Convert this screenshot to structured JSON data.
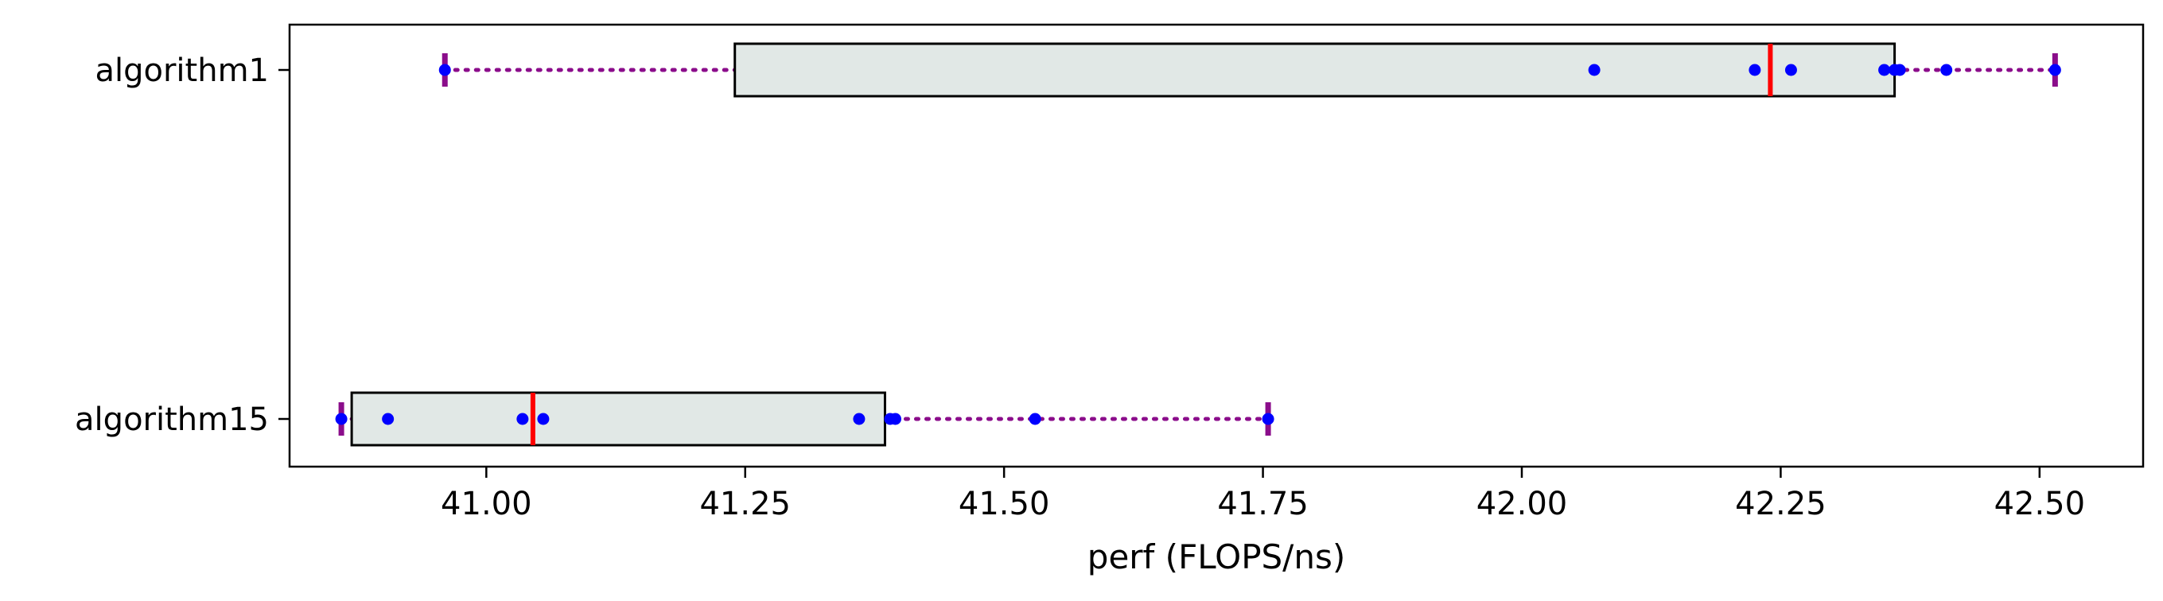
{
  "chart_data": {
    "type": "box",
    "orientation": "horizontal",
    "xlabel": "perf (FLOPS/ns)",
    "ylabel": "",
    "xlim": [
      40.81,
      42.6
    ],
    "x_ticks": [
      41.0,
      41.25,
      41.5,
      41.75,
      42.0,
      42.25,
      42.5
    ],
    "x_tick_labels": [
      "41.00",
      "41.25",
      "41.50",
      "41.75",
      "42.00",
      "42.25",
      "42.50"
    ],
    "grid": false,
    "series": [
      {
        "name": "algorithm1",
        "whisker_low": 40.96,
        "q1": 41.24,
        "median": 42.24,
        "q3": 42.36,
        "whisker_high": 42.515,
        "points": [
          40.96,
          42.07,
          42.225,
          42.26,
          42.35,
          42.36,
          42.365,
          42.41,
          42.515
        ]
      },
      {
        "name": "algorithm15",
        "whisker_low": 40.86,
        "q1": 40.87,
        "median": 41.045,
        "q3": 41.385,
        "whisker_high": 41.755,
        "points": [
          40.86,
          40.905,
          41.035,
          41.055,
          41.36,
          41.39,
          41.395,
          41.53,
          41.755
        ]
      }
    ],
    "colors": {
      "box_fill": "#e1e8e6",
      "box_edge": "#000000",
      "median": "#ff0000",
      "whisker": "#8b0d8b",
      "points": "#0000ff"
    }
  }
}
